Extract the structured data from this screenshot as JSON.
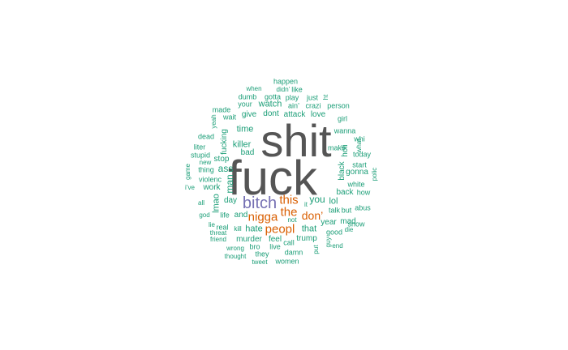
{
  "wordcloud": {
    "colors": {
      "green": "#1b9e77",
      "grey": "#555555",
      "purple": "#7570b3",
      "orange": "#d95f02"
    },
    "words": [
      {
        "text": "shit",
        "color": "grey",
        "rotated": false
      },
      {
        "text": "fuck",
        "color": "grey",
        "rotated": false
      },
      {
        "text": "bitch",
        "color": "purple",
        "rotated": false
      },
      {
        "text": "nigga",
        "color": "orange",
        "rotated": false
      },
      {
        "text": "the",
        "color": "orange",
        "rotated": false
      },
      {
        "text": "this",
        "color": "orange",
        "rotated": false
      },
      {
        "text": "don’",
        "color": "orange",
        "rotated": false
      },
      {
        "text": "peopl",
        "color": "orange",
        "rotated": false
      },
      {
        "text": "you",
        "color": "green",
        "rotated": false
      },
      {
        "text": "lol",
        "color": "green",
        "rotated": false
      },
      {
        "text": "happen",
        "color": "green",
        "rotated": false
      },
      {
        "text": "when",
        "color": "green",
        "rotated": false
      },
      {
        "text": "didn’",
        "color": "green",
        "rotated": false
      },
      {
        "text": "like",
        "color": "green",
        "rotated": false
      },
      {
        "text": "dumb",
        "color": "green",
        "rotated": false
      },
      {
        "text": "gotta",
        "color": "green",
        "rotated": false
      },
      {
        "text": "play",
        "color": "green",
        "rotated": false
      },
      {
        "text": "just",
        "color": "green",
        "rotated": false
      },
      {
        "text": "ht",
        "color": "green",
        "rotated": true
      },
      {
        "text": "your",
        "color": "green",
        "rotated": false
      },
      {
        "text": "watch",
        "color": "green",
        "rotated": false
      },
      {
        "text": "ain’",
        "color": "green",
        "rotated": false
      },
      {
        "text": "crazi",
        "color": "green",
        "rotated": false
      },
      {
        "text": "person",
        "color": "green",
        "rotated": false
      },
      {
        "text": "made",
        "color": "green",
        "rotated": false
      },
      {
        "text": "give",
        "color": "green",
        "rotated": false
      },
      {
        "text": "dont",
        "color": "green",
        "rotated": false
      },
      {
        "text": "attack",
        "color": "green",
        "rotated": false
      },
      {
        "text": "love",
        "color": "green",
        "rotated": false
      },
      {
        "text": "wait",
        "color": "green",
        "rotated": false
      },
      {
        "text": "girl",
        "color": "green",
        "rotated": false
      },
      {
        "text": "yeah",
        "color": "green",
        "rotated": true
      },
      {
        "text": "time",
        "color": "green",
        "rotated": false
      },
      {
        "text": "wanna",
        "color": "green",
        "rotated": false
      },
      {
        "text": "dead",
        "color": "green",
        "rotated": false
      },
      {
        "text": "whi",
        "color": "green",
        "rotated": false
      },
      {
        "text": "liter",
        "color": "green",
        "rotated": false
      },
      {
        "text": "fucking",
        "color": "green",
        "rotated": true
      },
      {
        "text": "make",
        "color": "green",
        "rotated": false
      },
      {
        "text": "holi",
        "color": "green",
        "rotated": true
      },
      {
        "text": "what",
        "color": "green",
        "rotated": true
      },
      {
        "text": "killer",
        "color": "green",
        "rotated": false
      },
      {
        "text": "stupid",
        "color": "green",
        "rotated": false
      },
      {
        "text": "bad",
        "color": "green",
        "rotated": false
      },
      {
        "text": "today",
        "color": "green",
        "rotated": false
      },
      {
        "text": "new",
        "color": "green",
        "rotated": false
      },
      {
        "text": "stop",
        "color": "green",
        "rotated": false
      },
      {
        "text": "start",
        "color": "green",
        "rotated": false
      },
      {
        "text": "game",
        "color": "green",
        "rotated": true
      },
      {
        "text": "thing",
        "color": "green",
        "rotated": false
      },
      {
        "text": "ass",
        "color": "green",
        "rotated": false
      },
      {
        "text": "black",
        "color": "green",
        "rotated": true
      },
      {
        "text": "gonna",
        "color": "green",
        "rotated": false
      },
      {
        "text": "polic",
        "color": "green",
        "rotated": true
      },
      {
        "text": "violenc",
        "color": "green",
        "rotated": false
      },
      {
        "text": "man",
        "color": "green",
        "rotated": true
      },
      {
        "text": "white",
        "color": "green",
        "rotated": false
      },
      {
        "text": "i’ve",
        "color": "green",
        "rotated": false
      },
      {
        "text": "work",
        "color": "green",
        "rotated": false
      },
      {
        "text": "back",
        "color": "green",
        "rotated": false
      },
      {
        "text": "how",
        "color": "green",
        "rotated": false
      },
      {
        "text": "lmao",
        "color": "green",
        "rotated": true
      },
      {
        "text": "all",
        "color": "green",
        "rotated": false
      },
      {
        "text": "day",
        "color": "green",
        "rotated": false
      },
      {
        "text": "abus",
        "color": "green",
        "rotated": false
      },
      {
        "text": "god",
        "color": "green",
        "rotated": false
      },
      {
        "text": "life",
        "color": "green",
        "rotated": false
      },
      {
        "text": "and",
        "color": "green",
        "rotated": false
      },
      {
        "text": "it",
        "color": "green",
        "rotated": false
      },
      {
        "text": "talk",
        "color": "green",
        "rotated": false
      },
      {
        "text": "but",
        "color": "green",
        "rotated": false
      },
      {
        "text": "not",
        "color": "green",
        "rotated": false
      },
      {
        "text": "year",
        "color": "green",
        "rotated": false
      },
      {
        "text": "mad",
        "color": "green",
        "rotated": false
      },
      {
        "text": "lie",
        "color": "green",
        "rotated": false
      },
      {
        "text": "real",
        "color": "green",
        "rotated": false
      },
      {
        "text": "kill",
        "color": "green",
        "rotated": false
      },
      {
        "text": "hate",
        "color": "green",
        "rotated": false
      },
      {
        "text": "that",
        "color": "green",
        "rotated": false
      },
      {
        "text": "show",
        "color": "green",
        "rotated": false
      },
      {
        "text": "threat",
        "color": "green",
        "rotated": false
      },
      {
        "text": "good",
        "color": "green",
        "rotated": false
      },
      {
        "text": "die",
        "color": "green",
        "rotated": false
      },
      {
        "text": "friend",
        "color": "green",
        "rotated": false
      },
      {
        "text": "murder",
        "color": "green",
        "rotated": false
      },
      {
        "text": "feel",
        "color": "green",
        "rotated": false
      },
      {
        "text": "trump",
        "color": "green",
        "rotated": false
      },
      {
        "text": "guy",
        "color": "green",
        "rotated": true
      },
      {
        "text": "wrong",
        "color": "green",
        "rotated": false
      },
      {
        "text": "bro",
        "color": "green",
        "rotated": false
      },
      {
        "text": "call",
        "color": "green",
        "rotated": false
      },
      {
        "text": "live",
        "color": "green",
        "rotated": false
      },
      {
        "text": "put",
        "color": "green",
        "rotated": true
      },
      {
        "text": "end",
        "color": "green",
        "rotated": false
      },
      {
        "text": "thought",
        "color": "green",
        "rotated": false
      },
      {
        "text": "they",
        "color": "green",
        "rotated": false
      },
      {
        "text": "damn",
        "color": "green",
        "rotated": false
      },
      {
        "text": "tweet",
        "color": "green",
        "rotated": false
      },
      {
        "text": "women",
        "color": "green",
        "rotated": false
      }
    ]
  }
}
